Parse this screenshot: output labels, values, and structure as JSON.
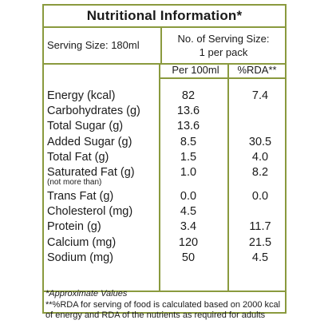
{
  "label": {
    "title": "Nutritional Information*",
    "serving_size": "Serving Size: 180ml",
    "serving_count_line1": "No. of Serving Size:",
    "serving_count_line2": "1 per pack",
    "col_per100": "Per 100ml",
    "col_rda": "%RDA**",
    "rows": [
      {
        "name": "Energy (kcal)",
        "per100": "82",
        "rda": "7.4"
      },
      {
        "name": "Carbohydrates (g)",
        "per100": "13.6",
        "rda": ""
      },
      {
        "name": "Total Sugar (g)",
        "per100": "13.6",
        "rda": ""
      },
      {
        "name": "Added Sugar (g)",
        "per100": "8.5",
        "rda": "30.5"
      },
      {
        "name": "Total Fat (g)",
        "per100": "1.5",
        "rda": "4.0"
      },
      {
        "name": "Saturated Fat (g)",
        "sub": "(not more than)",
        "per100": "1.0",
        "rda": "8.2"
      },
      {
        "name": "Trans Fat (g)",
        "per100": "0.0",
        "rda": "0.0"
      },
      {
        "name": "Cholesterol (mg)",
        "per100": "4.5",
        "rda": ""
      },
      {
        "name": "Protein (g)",
        "per100": "3.4",
        "rda": "11.7"
      },
      {
        "name": "Calcium (mg)",
        "per100": "120",
        "rda": "21.5"
      },
      {
        "name": "Sodium (mg)",
        "per100": "50",
        "rda": "4.5"
      }
    ],
    "approx_note": "*Approximate Values",
    "rda_note_line1": "**%RDA for serving of food is calculated based on 2000 kcal",
    "rda_note_line2": "of energy and RDA of the nutrients as required for adults"
  },
  "colors": {
    "border": "#8a9a3e",
    "text": "#1a1a1a",
    "background": "#ffffff"
  }
}
